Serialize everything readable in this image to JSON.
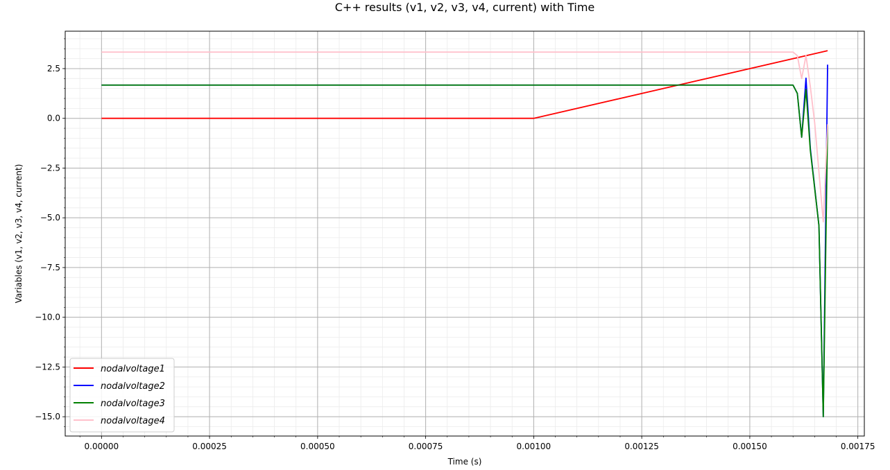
{
  "chart_data": {
    "type": "line",
    "title": "C++ results (v1, v2, v3, v4, current) with Time",
    "xlabel": "Time (s)",
    "ylabel": "Variables (v1, v2, v3, v4, current)",
    "xlim": [
      -8.4e-05,
      0.001765
    ],
    "ylim": [
      -15.97,
      4.38
    ],
    "xticks": [
      0,
      0.00025,
      0.0005,
      0.00075,
      0.001,
      0.00125,
      0.0015,
      0.00175
    ],
    "xtick_labels": [
      "0.00000",
      "0.00025",
      "0.00050",
      "0.00075",
      "0.00100",
      "0.00125",
      "0.00150",
      "0.00175"
    ],
    "yticks": [
      2.5,
      0,
      -2.5,
      -5,
      -7.5,
      -10,
      -12.5,
      -15
    ],
    "ytick_labels": [
      "2.5",
      "0.0",
      "−2.5",
      "−5.0",
      "−7.5",
      "−10.0",
      "−12.5",
      "−15.0"
    ],
    "grid": true,
    "legend_position": "lower-left",
    "series": [
      {
        "name": "nodalvoltage1",
        "color": "#ff0000",
        "points": [
          [
            0,
            0
          ],
          [
            0.001,
            0
          ],
          [
            0.00168,
            3.4
          ]
        ]
      },
      {
        "name": "nodalvoltage2",
        "color": "#0000ff",
        "points": [
          [
            0,
            1.67
          ],
          [
            0.0016,
            1.67
          ],
          [
            0.00161,
            1.25
          ],
          [
            0.00162,
            -0.95
          ],
          [
            0.00163,
            2.02
          ],
          [
            0.00164,
            -1.5
          ],
          [
            0.00166,
            -5.4
          ],
          [
            0.00167,
            -15.0
          ],
          [
            0.00168,
            2.7
          ]
        ]
      },
      {
        "name": "nodalvoltage3",
        "color": "#008000",
        "points": [
          [
            0,
            1.67
          ],
          [
            0.0016,
            1.67
          ],
          [
            0.00161,
            1.25
          ],
          [
            0.00162,
            -0.95
          ],
          [
            0.00163,
            1.45
          ],
          [
            0.00164,
            -1.6
          ],
          [
            0.00166,
            -5.4
          ],
          [
            0.00167,
            -15.0
          ],
          [
            0.00168,
            -0.35
          ]
        ]
      },
      {
        "name": "nodalvoltage4",
        "color": "#ffc0cb",
        "points": [
          [
            0,
            3.33
          ],
          [
            0.0016,
            3.33
          ],
          [
            0.00161,
            3.15
          ],
          [
            0.00162,
            2.0
          ],
          [
            0.00163,
            3.15
          ],
          [
            0.00164,
            1.6
          ],
          [
            0.00165,
            -0.2
          ],
          [
            0.00167,
            -5.2
          ],
          [
            0.00168,
            -0.3
          ]
        ]
      }
    ]
  }
}
